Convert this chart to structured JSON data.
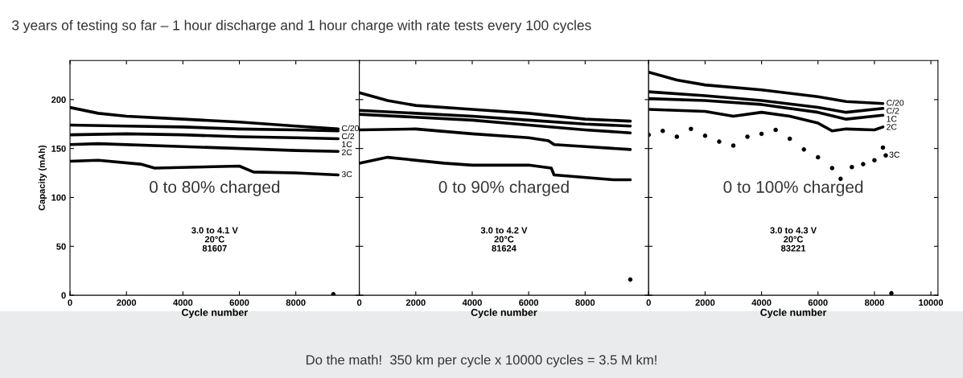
{
  "chart_data": [
    {
      "type": "line",
      "title": "3 years of testing so far – 1 hour discharge and 1 hour charge with rate tests every 100 cycles",
      "xlabel": "Cycle number",
      "ylabel": "Capacity (mAh)",
      "xlim": [
        0,
        10250
      ],
      "xticks": [
        0,
        2000,
        4000,
        6000,
        8000
      ],
      "ylim": [
        0,
        240
      ],
      "yticks": [
        0,
        50,
        100,
        150,
        200
      ],
      "grid": false,
      "line_style": "solid",
      "annotations": [
        "0 to 80% charged",
        "3.0 to 4.1 V\n20°C\n81607",
        "Do the math!  350 km per cycle x 10000 cycles = 3.5 M km!"
      ],
      "series": [
        {
          "name": "C/20",
          "color": "#000000",
          "x": [
            0,
            1000,
            2000,
            4000,
            6000,
            8000,
            9500
          ],
          "values": [
            192,
            186,
            183,
            180,
            177,
            173,
            170
          ]
        },
        {
          "name": "C/2",
          "color": "#000000",
          "x": [
            0,
            2000,
            4000,
            6000,
            8000,
            9500
          ],
          "values": [
            174,
            173,
            172,
            170,
            169,
            168
          ]
        },
        {
          "name": "1C",
          "color": "#000000",
          "x": [
            0,
            2000,
            4000,
            6000,
            8000,
            9500
          ],
          "values": [
            164,
            165,
            164,
            162,
            161,
            160
          ]
        },
        {
          "name": "2C",
          "color": "#000000",
          "x": [
            0,
            1000,
            4000,
            6000,
            8000,
            9500
          ],
          "values": [
            154,
            155,
            152,
            150,
            148,
            147
          ]
        },
        {
          "name": "3C",
          "color": "#000000",
          "x": [
            0,
            1000,
            2500,
            3000,
            4500,
            6000,
            6500,
            8000,
            9500
          ],
          "values": [
            137,
            138,
            134,
            130,
            131,
            132,
            126,
            125,
            123
          ]
        },
        {
          "type": "scatter",
          "color": "#000000",
          "x": [
            9330
          ],
          "values": [
            1
          ]
        }
      ]
    },
    {
      "type": "line",
      "xlabel": "Cycle number",
      "xlim": [
        0,
        10250
      ],
      "xticks": [
        0,
        2000,
        4000,
        6000,
        8000
      ],
      "ylim": [
        0,
        240
      ],
      "yticks": [
        0,
        50,
        100,
        150,
        200
      ],
      "tick_labels": "x",
      "grid": false,
      "line_style": "solid",
      "annotations": [
        "0 to 90% charged",
        "3.0 to 4.2 V\n20°C\n81624"
      ],
      "series": [
        {
          "color": "#000000",
          "x": [
            0,
            1000,
            2000,
            4000,
            6000,
            8000,
            9600
          ],
          "values": [
            207,
            199,
            194,
            190,
            186,
            180,
            178
          ]
        },
        {
          "color": "#000000",
          "x": [
            0,
            2000,
            4000,
            6000,
            8000,
            9600
          ],
          "values": [
            189,
            186,
            183,
            179,
            175,
            173
          ]
        },
        {
          "color": "#000000",
          "x": [
            0,
            2000,
            4000,
            6000,
            8000,
            9600
          ],
          "values": [
            185,
            182,
            179,
            174,
            169,
            166
          ]
        },
        {
          "color": "#000000",
          "x": [
            0,
            2000,
            4000,
            6000,
            6700,
            6900,
            8000,
            9600
          ],
          "values": [
            169,
            170,
            165,
            161,
            158,
            154,
            152,
            149
          ]
        },
        {
          "color": "#000000",
          "x": [
            0,
            1000,
            3000,
            4000,
            6000,
            6800,
            6900,
            9000,
            9600
          ],
          "values": [
            135,
            141,
            135,
            133,
            133,
            130,
            123,
            118,
            118
          ]
        },
        {
          "type": "scatter",
          "color": "#000000",
          "x": [
            9600
          ],
          "values": [
            16
          ]
        }
      ]
    },
    {
      "type": "line",
      "xlabel": "Cycle number",
      "xlim": [
        0,
        10250
      ],
      "xticks": [
        0,
        2000,
        4000,
        6000,
        8000,
        10000
      ],
      "ylim": [
        0,
        240
      ],
      "yticks": [
        0,
        50,
        100,
        150,
        200
      ],
      "tick_labels": "x",
      "grid": false,
      "line_style": "solid",
      "annotations": [
        "0 to 100% charged",
        "3.0 to 4.3 V\n20°C\n83221"
      ],
      "series": [
        {
          "name": "C/20",
          "color": "#000000",
          "x": [
            0,
            1000,
            2000,
            4000,
            6000,
            7000,
            8300
          ],
          "values": [
            228,
            220,
            215,
            210,
            203,
            198,
            196
          ]
        },
        {
          "name": "C/2",
          "color": "#000000",
          "x": [
            0,
            2000,
            4000,
            6000,
            7000,
            8300
          ],
          "values": [
            208,
            204,
            199,
            192,
            187,
            191
          ]
        },
        {
          "name": "1C",
          "color": "#000000",
          "x": [
            0,
            2000,
            4000,
            6000,
            7000,
            8300
          ],
          "values": [
            201,
            199,
            195,
            187,
            180,
            184
          ]
        },
        {
          "name": "2C",
          "color": "#000000",
          "x": [
            0,
            2000,
            3000,
            4000,
            5000,
            6000,
            6500,
            7000,
            8000,
            8300
          ],
          "values": [
            190,
            188,
            183,
            187,
            183,
            176,
            168,
            170,
            169,
            172
          ]
        },
        {
          "name": "3C",
          "type": "scatter",
          "color": "#000000",
          "x": [
            0,
            500,
            1000,
            1500,
            2000,
            2500,
            3000,
            3500,
            4000,
            4500,
            5000,
            5500,
            6000,
            6500,
            6800,
            7200,
            7600,
            8000,
            8300,
            8400
          ],
          "values": [
            164,
            168,
            162,
            170,
            163,
            157,
            153,
            162,
            165,
            169,
            160,
            149,
            141,
            130,
            119,
            131,
            134,
            138,
            151,
            143
          ]
        },
        {
          "type": "scatter",
          "color": "#000000",
          "x": [
            8600
          ],
          "values": [
            2
          ]
        }
      ]
    }
  ]
}
